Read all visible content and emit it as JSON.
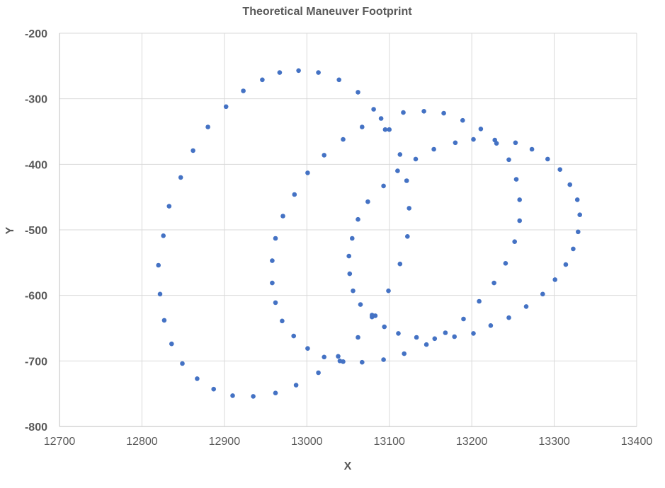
{
  "chart_data": {
    "type": "scatter",
    "title": "Theoretical Maneuver Footprint",
    "xlabel": "X",
    "ylabel": "Y",
    "xlim": [
      12700,
      13400
    ],
    "ylim": [
      -800,
      -200
    ],
    "xticks": [
      12700,
      12800,
      12900,
      13000,
      13100,
      13200,
      13300,
      13400
    ],
    "yticks": [
      -200,
      -300,
      -400,
      -500,
      -600,
      -700,
      -800
    ],
    "grid": true,
    "marker_color": "#4472C4",
    "series": [
      {
        "points": [
          [
            12990,
            -257
          ],
          [
            13014,
            -260
          ],
          [
            13039,
            -271
          ],
          [
            13062,
            -290
          ],
          [
            13081,
            -316
          ],
          [
            13095,
            -347
          ],
          [
            13113,
            -385
          ],
          [
            13121,
            -425
          ],
          [
            13124,
            -467
          ],
          [
            13122,
            -510
          ],
          [
            13113,
            -552
          ],
          [
            13099,
            -593
          ],
          [
            13079,
            -630
          ],
          [
            13067,
            -702
          ],
          [
            13040,
            -700
          ],
          [
            13014,
            -718
          ],
          [
            12987,
            -737
          ],
          [
            12962,
            -749
          ],
          [
            12935,
            -754
          ],
          [
            12910,
            -753
          ],
          [
            12887,
            -743
          ],
          [
            12867,
            -727
          ],
          [
            12849,
            -704
          ],
          [
            12836,
            -674
          ],
          [
            12827,
            -638
          ],
          [
            12822,
            -598
          ],
          [
            12820,
            -554
          ],
          [
            12826,
            -509
          ],
          [
            12833,
            -464
          ],
          [
            12847,
            -420
          ],
          [
            12862,
            -379
          ],
          [
            12880,
            -343
          ],
          [
            12902,
            -312
          ],
          [
            12923,
            -288
          ],
          [
            12946,
            -271
          ],
          [
            12967,
            -260
          ]
        ]
      },
      {
        "points": [
          [
            13100,
            -347
          ],
          [
            13090,
            -330
          ],
          [
            13067,
            -343
          ],
          [
            13044,
            -362
          ],
          [
            13021,
            -386
          ],
          [
            13001,
            -413
          ],
          [
            12985,
            -446
          ],
          [
            12971,
            -479
          ],
          [
            12962,
            -513
          ],
          [
            12958,
            -547
          ],
          [
            12958,
            -581
          ],
          [
            12962,
            -611
          ],
          [
            12970,
            -639
          ],
          [
            12984,
            -662
          ],
          [
            13001,
            -681
          ],
          [
            13021,
            -694
          ],
          [
            13044,
            -701
          ],
          [
            13093,
            -698
          ],
          [
            13111,
            -658
          ],
          [
            13133,
            -664
          ],
          [
            13145,
            -675
          ],
          [
            13155,
            -666
          ],
          [
            13168,
            -657
          ],
          [
            13179,
            -663
          ],
          [
            13190,
            -636
          ],
          [
            13202,
            -658
          ],
          [
            13223,
            -646
          ],
          [
            13245,
            -634
          ],
          [
            13266,
            -617
          ],
          [
            13286,
            -598
          ],
          [
            13301,
            -576
          ],
          [
            13314,
            -553
          ],
          [
            13323,
            -529
          ],
          [
            13329,
            -503
          ],
          [
            13331,
            -477
          ],
          [
            13328,
            -454
          ],
          [
            13319,
            -431
          ],
          [
            13307,
            -408
          ],
          [
            13292,
            -392
          ],
          [
            13273,
            -377
          ],
          [
            13253,
            -367
          ],
          [
            13228,
            -363
          ],
          [
            13202,
            -362
          ],
          [
            13180,
            -367
          ],
          [
            13154,
            -377
          ],
          [
            13132,
            -392
          ],
          [
            13110,
            -410
          ],
          [
            13093,
            -433
          ],
          [
            13074,
            -457
          ],
          [
            13062,
            -484
          ],
          [
            13055,
            -513
          ],
          [
            13051,
            -540
          ],
          [
            13052,
            -567
          ],
          [
            13056,
            -593
          ],
          [
            13065,
            -614
          ],
          [
            13079,
            -633
          ],
          [
            13094,
            -648
          ],
          [
            13118,
            -689
          ],
          [
            13062,
            -664
          ],
          [
            13038,
            -693
          ]
        ]
      },
      {
        "points": [
          [
            13083,
            -631
          ],
          [
            13117,
            -321
          ],
          [
            13142,
            -319
          ],
          [
            13166,
            -322
          ],
          [
            13189,
            -333
          ],
          [
            13211,
            -346
          ],
          [
            13230,
            -368
          ],
          [
            13245,
            -393
          ],
          [
            13254,
            -423
          ],
          [
            13258,
            -454
          ],
          [
            13258,
            -486
          ],
          [
            13252,
            -518
          ],
          [
            13241,
            -551
          ],
          [
            13227,
            -581
          ],
          [
            13209,
            -609
          ]
        ]
      }
    ]
  }
}
